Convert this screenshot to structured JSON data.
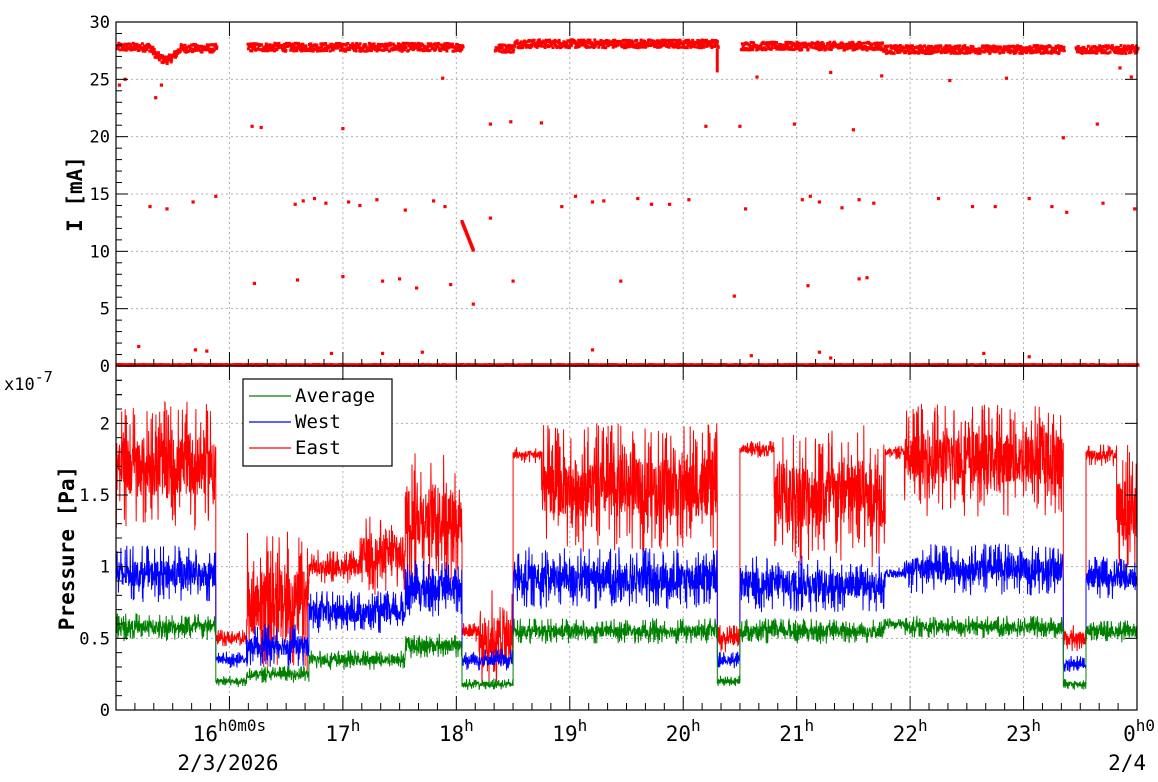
{
  "chart_data": [
    {
      "type": "scatter",
      "ylabel": "I [mA]",
      "ylim": [
        0,
        30
      ],
      "yticks": [
        0,
        5,
        10,
        15,
        20,
        25,
        30
      ],
      "xlim_hours": [
        15.0,
        24.0
      ],
      "grid": true,
      "series": [
        {
          "color": "#ff0000",
          "main_band": [
            {
              "from": 15.0,
              "to": 15.3,
              "level": 27.8
            },
            {
              "from": 15.3,
              "to": 15.55,
              "level": 26.6
            },
            {
              "from": 15.55,
              "to": 15.88,
              "level": 27.7
            },
            {
              "from": 16.15,
              "to": 18.05,
              "level": 27.8
            },
            {
              "from": 18.33,
              "to": 18.5,
              "level": 27.7
            },
            {
              "from": 18.5,
              "to": 20.3,
              "level": 28.1
            },
            {
              "from": 20.5,
              "to": 21.75,
              "level": 27.9
            },
            {
              "from": 21.75,
              "to": 23.35,
              "level": 27.6
            },
            {
              "from": 23.45,
              "to": 24.0,
              "level": 27.6
            }
          ],
          "outliers": [
            [
              15.03,
              24.5
            ],
            [
              15.08,
              25.0
            ],
            [
              15.35,
              23.4
            ],
            [
              15.4,
              24.5
            ],
            [
              15.3,
              13.9
            ],
            [
              15.45,
              13.7
            ],
            [
              15.68,
              14.3
            ],
            [
              15.88,
              14.8
            ],
            [
              15.2,
              1.7
            ],
            [
              15.7,
              1.4
            ],
            [
              15.8,
              1.3
            ],
            [
              16.2,
              20.9
            ],
            [
              16.28,
              20.8
            ],
            [
              16.22,
              7.2
            ],
            [
              16.6,
              7.5
            ],
            [
              16.58,
              14.1
            ],
            [
              16.65,
              14.4
            ],
            [
              16.75,
              14.6
            ],
            [
              16.85,
              14.2
            ],
            [
              17.0,
              20.7
            ],
            [
              17.0,
              7.8
            ],
            [
              17.05,
              14.3
            ],
            [
              17.15,
              14.0
            ],
            [
              17.3,
              14.5
            ],
            [
              17.35,
              7.4
            ],
            [
              17.5,
              7.6
            ],
            [
              17.55,
              13.6
            ],
            [
              17.65,
              6.8
            ],
            [
              17.8,
              14.4
            ],
            [
              17.9,
              13.9
            ],
            [
              17.95,
              7.1
            ],
            [
              17.88,
              25.1
            ],
            [
              18.15,
              5.4
            ],
            [
              18.3,
              21.1
            ],
            [
              18.3,
              12.9
            ],
            [
              18.48,
              21.3
            ],
            [
              18.5,
              7.4
            ],
            [
              18.75,
              21.2
            ],
            [
              18.93,
              13.9
            ],
            [
              19.05,
              14.8
            ],
            [
              19.2,
              14.3
            ],
            [
              19.3,
              14.4
            ],
            [
              19.45,
              7.4
            ],
            [
              19.6,
              14.6
            ],
            [
              19.72,
              14.1
            ],
            [
              19.88,
              14.1
            ],
            [
              20.05,
              14.5
            ],
            [
              20.2,
              20.9
            ],
            [
              20.45,
              6.1
            ],
            [
              20.5,
              20.9
            ],
            [
              20.55,
              13.7
            ],
            [
              20.65,
              25.2
            ],
            [
              20.98,
              21.1
            ],
            [
              21.05,
              14.5
            ],
            [
              21.12,
              14.8
            ],
            [
              21.1,
              7.0
            ],
            [
              21.2,
              14.3
            ],
            [
              21.3,
              25.6
            ],
            [
              21.4,
              13.8
            ],
            [
              21.5,
              20.6
            ],
            [
              21.55,
              14.5
            ],
            [
              21.55,
              7.6
            ],
            [
              21.62,
              7.7
            ],
            [
              21.68,
              14.2
            ],
            [
              21.75,
              25.3
            ],
            [
              22.25,
              14.6
            ],
            [
              22.35,
              24.9
            ],
            [
              22.55,
              13.9
            ],
            [
              22.75,
              13.9
            ],
            [
              22.85,
              25.1
            ],
            [
              23.05,
              14.6
            ],
            [
              23.25,
              13.9
            ],
            [
              23.35,
              19.9
            ],
            [
              23.38,
              13.4
            ],
            [
              23.65,
              21.1
            ],
            [
              23.7,
              14.2
            ],
            [
              23.85,
              26.0
            ],
            [
              23.95,
              25.2
            ],
            [
              23.98,
              13.7
            ],
            [
              16.9,
              1.1
            ],
            [
              17.35,
              1.1
            ],
            [
              17.7,
              1.2
            ],
            [
              19.2,
              1.4
            ],
            [
              20.6,
              0.9
            ],
            [
              21.2,
              1.2
            ],
            [
              21.3,
              0.7
            ],
            [
              22.65,
              1.1
            ],
            [
              23.05,
              0.8
            ]
          ],
          "ramp": {
            "from": [
              18.05,
              12.6
            ],
            "to": [
              18.15,
              10.1
            ]
          },
          "drop": {
            "hour": 20.3,
            "from": 27.7,
            "to": 25.6
          }
        }
      ]
    },
    {
      "type": "line",
      "ylabel": "Pressure [Pa]",
      "exponent_label": "x10",
      "exponent_value": "-7",
      "ylim": [
        0,
        2.4
      ],
      "yticks": [
        "0",
        "0.5",
        "1",
        "1.5",
        "2"
      ],
      "xlim_hours": [
        15.0,
        24.0
      ],
      "grid": true,
      "legend": {
        "placement": "top-left",
        "entries": [
          "Average",
          "West",
          "East"
        ]
      },
      "series": [
        {
          "name": "East",
          "color": "#ff0000",
          "segments": [
            {
              "from": 15.0,
              "to": 15.88,
              "level": 1.7,
              "noise": 0.45
            },
            {
              "from": 15.88,
              "to": 16.15,
              "level": 0.5,
              "noise": 0.06
            },
            {
              "from": 16.15,
              "to": 16.7,
              "level": 0.75,
              "noise": 0.5
            },
            {
              "from": 16.7,
              "to": 17.15,
              "level": 1.0,
              "noise": 0.12
            },
            {
              "from": 17.15,
              "to": 17.55,
              "level": 1.08,
              "noise": 0.28
            },
            {
              "from": 17.55,
              "to": 18.05,
              "level": 1.35,
              "noise": 0.45
            },
            {
              "from": 18.05,
              "to": 18.2,
              "level": 0.55,
              "noise": 0.08
            },
            {
              "from": 18.2,
              "to": 18.5,
              "level": 0.5,
              "noise": 0.35
            },
            {
              "from": 18.5,
              "to": 18.75,
              "level": 1.78,
              "noise": 0.06
            },
            {
              "from": 18.75,
              "to": 20.3,
              "level": 1.55,
              "noise": 0.45
            },
            {
              "from": 20.3,
              "to": 20.5,
              "level": 0.5,
              "noise": 0.1
            },
            {
              "from": 20.5,
              "to": 20.8,
              "level": 1.82,
              "noise": 0.06
            },
            {
              "from": 20.8,
              "to": 21.78,
              "level": 1.5,
              "noise": 0.5
            },
            {
              "from": 21.78,
              "to": 21.95,
              "level": 1.8,
              "noise": 0.05
            },
            {
              "from": 21.95,
              "to": 23.35,
              "level": 1.75,
              "noise": 0.4
            },
            {
              "from": 23.35,
              "to": 23.55,
              "level": 0.5,
              "noise": 0.1
            },
            {
              "from": 23.55,
              "to": 23.82,
              "level": 1.78,
              "noise": 0.08
            },
            {
              "from": 23.82,
              "to": 24.0,
              "level": 1.4,
              "noise": 0.45
            }
          ]
        },
        {
          "name": "West",
          "color": "#0000ff",
          "segments": [
            {
              "from": 15.0,
              "to": 15.88,
              "level": 0.95,
              "noise": 0.2
            },
            {
              "from": 15.88,
              "to": 16.15,
              "level": 0.35,
              "noise": 0.06
            },
            {
              "from": 16.15,
              "to": 16.7,
              "level": 0.45,
              "noise": 0.15
            },
            {
              "from": 16.7,
              "to": 17.55,
              "level": 0.68,
              "noise": 0.15
            },
            {
              "from": 17.55,
              "to": 18.05,
              "level": 0.85,
              "noise": 0.2
            },
            {
              "from": 18.05,
              "to": 18.5,
              "level": 0.35,
              "noise": 0.08
            },
            {
              "from": 18.5,
              "to": 20.3,
              "level": 0.92,
              "noise": 0.22
            },
            {
              "from": 20.3,
              "to": 20.5,
              "level": 0.35,
              "noise": 0.06
            },
            {
              "from": 20.5,
              "to": 21.78,
              "level": 0.88,
              "noise": 0.2
            },
            {
              "from": 21.78,
              "to": 21.95,
              "level": 0.95,
              "noise": 0.05
            },
            {
              "from": 21.95,
              "to": 23.35,
              "level": 0.98,
              "noise": 0.18
            },
            {
              "from": 23.35,
              "to": 23.55,
              "level": 0.32,
              "noise": 0.06
            },
            {
              "from": 23.55,
              "to": 24.0,
              "level": 0.92,
              "noise": 0.15
            }
          ]
        },
        {
          "name": "Average",
          "color": "#008000",
          "segments": [
            {
              "from": 15.0,
              "to": 15.88,
              "level": 0.58,
              "noise": 0.1
            },
            {
              "from": 15.88,
              "to": 16.15,
              "level": 0.2,
              "noise": 0.04
            },
            {
              "from": 16.15,
              "to": 16.7,
              "level": 0.25,
              "noise": 0.06
            },
            {
              "from": 16.7,
              "to": 17.55,
              "level": 0.35,
              "noise": 0.07
            },
            {
              "from": 17.55,
              "to": 18.05,
              "level": 0.45,
              "noise": 0.09
            },
            {
              "from": 18.05,
              "to": 18.5,
              "level": 0.18,
              "noise": 0.04
            },
            {
              "from": 18.5,
              "to": 20.3,
              "level": 0.55,
              "noise": 0.09
            },
            {
              "from": 20.3,
              "to": 20.5,
              "level": 0.2,
              "noise": 0.04
            },
            {
              "from": 20.5,
              "to": 21.78,
              "level": 0.55,
              "noise": 0.09
            },
            {
              "from": 21.78,
              "to": 21.95,
              "level": 0.6,
              "noise": 0.04
            },
            {
              "from": 21.95,
              "to": 23.35,
              "level": 0.58,
              "noise": 0.08
            },
            {
              "from": 23.35,
              "to": 23.55,
              "level": 0.18,
              "noise": 0.04
            },
            {
              "from": 23.55,
              "to": 24.0,
              "level": 0.55,
              "noise": 0.08
            }
          ]
        }
      ]
    }
  ],
  "x_axis": {
    "major_ticks": [
      {
        "hour": 16,
        "label": "16",
        "sup": "h0m0s"
      },
      {
        "hour": 17,
        "label": "17",
        "sup": "h"
      },
      {
        "hour": 18,
        "label": "18",
        "sup": "h"
      },
      {
        "hour": 19,
        "label": "19",
        "sup": "h"
      },
      {
        "hour": 20,
        "label": "20",
        "sup": "h"
      },
      {
        "hour": 21,
        "label": "21",
        "sup": "h"
      },
      {
        "hour": 22,
        "label": "22",
        "sup": "h"
      },
      {
        "hour": 23,
        "label": "23",
        "sup": "h"
      },
      {
        "hour": 24,
        "label": "0",
        "sup": "h0"
      }
    ],
    "date_left": "2/3/2026",
    "date_right": "2/4"
  }
}
